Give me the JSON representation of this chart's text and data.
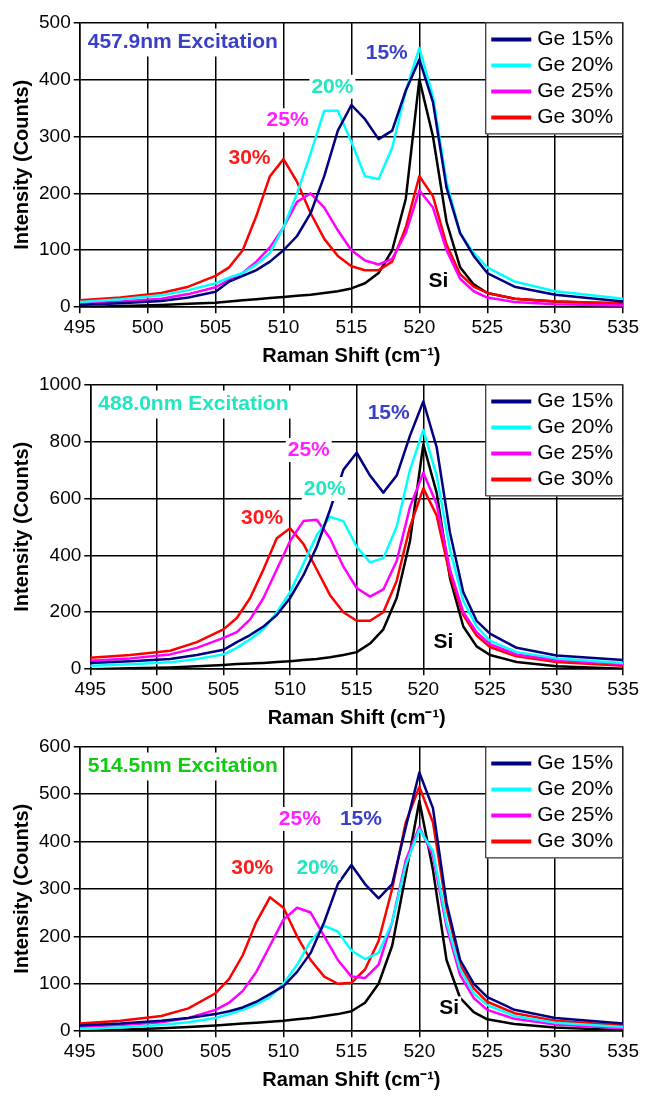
{
  "chart_data": [
    {
      "type": "line",
      "title": "457.9nm Excitation",
      "xlabel": "Raman Shift (cm⁻¹)",
      "ylabel": "Intensity (Counts)",
      "xlim": [
        495,
        535
      ],
      "xticks": [
        495,
        500,
        505,
        510,
        515,
        520,
        525,
        530,
        535
      ],
      "ylim": [
        0,
        500
      ],
      "yticks": [
        0,
        100,
        200,
        300,
        400,
        500
      ],
      "grid": true,
      "legend": "top right",
      "x": [
        495,
        498,
        501,
        503,
        505,
        506,
        507,
        508,
        509,
        510,
        511,
        512,
        513,
        514,
        515,
        516,
        517,
        518,
        519,
        520,
        521,
        522,
        523,
        524,
        525,
        527,
        530,
        535
      ],
      "series": [
        {
          "name": "Ge 15%",
          "color": "#000080",
          "values": [
            4,
            7,
            11,
            17,
            27,
            45,
            55,
            65,
            80,
            100,
            125,
            165,
            230,
            310,
            355,
            330,
            295,
            310,
            380,
            435,
            360,
            210,
            130,
            90,
            60,
            36,
            22,
            10
          ]
        },
        {
          "name": "Ge 20%",
          "color": "#00ffff",
          "values": [
            9,
            14,
            21,
            30,
            42,
            52,
            60,
            75,
            95,
            140,
            200,
            270,
            345,
            345,
            290,
            230,
            225,
            280,
            380,
            455,
            370,
            220,
            130,
            95,
            70,
            45,
            28,
            15
          ]
        },
        {
          "name": "Ge 25%",
          "color": "#ff00ff",
          "values": [
            6,
            10,
            15,
            23,
            35,
            48,
            60,
            80,
            105,
            140,
            185,
            200,
            175,
            135,
            100,
            82,
            75,
            85,
            130,
            205,
            175,
            100,
            50,
            28,
            17,
            9,
            5,
            3
          ]
        },
        {
          "name": "Ge 30%",
          "color": "#ff0000",
          "values": [
            12,
            17,
            25,
            36,
            55,
            70,
            100,
            160,
            230,
            260,
            220,
            165,
            120,
            90,
            72,
            65,
            65,
            80,
            140,
            230,
            195,
            110,
            58,
            36,
            25,
            15,
            10,
            7
          ]
        },
        {
          "color": "#000000",
          "values": [
            0,
            2,
            4,
            6,
            8,
            10,
            12,
            14,
            16,
            18,
            20,
            22,
            25,
            28,
            33,
            42,
            60,
            100,
            190,
            400,
            300,
            150,
            70,
            40,
            25,
            15,
            10,
            6
          ]
        }
      ],
      "annotations": [
        "15%",
        "20%",
        "25%",
        "30%",
        "Si"
      ]
    },
    {
      "type": "line",
      "title": "488.0nm Excitation",
      "xlabel": "Raman Shift (cm⁻¹)",
      "ylabel": "Intensity (Counts)",
      "xlim": [
        495,
        535
      ],
      "xticks": [
        495,
        500,
        505,
        510,
        515,
        520,
        525,
        530,
        535
      ],
      "ylim": [
        0,
        1000
      ],
      "yticks": [
        0,
        200,
        400,
        600,
        800,
        1000
      ],
      "grid": true,
      "legend": "top right",
      "x": [
        495,
        498,
        501,
        503,
        505,
        506,
        507,
        508,
        509,
        510,
        511,
        512,
        513,
        514,
        515,
        516,
        517,
        518,
        519,
        520,
        521,
        522,
        523,
        524,
        525,
        527,
        530,
        535
      ],
      "series": [
        {
          "name": "Ge 15%",
          "color": "#000080",
          "values": [
            22,
            28,
            36,
            50,
            68,
            95,
            120,
            150,
            190,
            250,
            330,
            430,
            560,
            700,
            760,
            680,
            620,
            680,
            820,
            940,
            780,
            480,
            270,
            170,
            125,
            75,
            48,
            32
          ]
        },
        {
          "name": "Ge 20%",
          "color": "#00ffff",
          "values": [
            12,
            17,
            24,
            36,
            52,
            75,
            105,
            140,
            200,
            270,
            370,
            470,
            535,
            520,
            430,
            375,
            390,
            500,
            700,
            840,
            680,
            420,
            240,
            150,
            100,
            60,
            38,
            22
          ]
        },
        {
          "name": "Ge 25%",
          "color": "#ff00ff",
          "values": [
            30,
            38,
            52,
            75,
            110,
            130,
            175,
            250,
            350,
            450,
            520,
            525,
            460,
            360,
            285,
            255,
            280,
            380,
            570,
            690,
            580,
            350,
            200,
            130,
            88,
            52,
            32,
            18
          ]
        },
        {
          "name": "Ge 30%",
          "color": "#ff0000",
          "values": [
            40,
            50,
            65,
            95,
            140,
            180,
            250,
            350,
            460,
            495,
            440,
            350,
            260,
            200,
            170,
            170,
            200,
            310,
            500,
            635,
            540,
            330,
            190,
            118,
            78,
            45,
            25,
            12
          ]
        },
        {
          "color": "#000000",
          "values": [
            0,
            3,
            6,
            10,
            15,
            18,
            20,
            22,
            25,
            28,
            32,
            36,
            42,
            50,
            60,
            90,
            140,
            250,
            450,
            790,
            620,
            320,
            150,
            80,
            50,
            25,
            10,
            2
          ]
        }
      ],
      "annotations": [
        "15%",
        "25%",
        "20%",
        "30%",
        "Si"
      ]
    },
    {
      "type": "line",
      "title": "514.5nm Excitation",
      "xlabel": "Raman Shift (cm⁻¹)",
      "ylabel": "Intensity (Counts)",
      "xlim": [
        495,
        535
      ],
      "xticks": [
        495,
        500,
        505,
        510,
        515,
        520,
        525,
        530,
        535
      ],
      "ylim": [
        0,
        600
      ],
      "yticks": [
        0,
        100,
        200,
        300,
        400,
        500,
        600
      ],
      "grid": true,
      "legend": "top right",
      "x": [
        495,
        498,
        501,
        503,
        505,
        506,
        507,
        508,
        509,
        510,
        511,
        512,
        513,
        514,
        515,
        516,
        517,
        518,
        519,
        520,
        521,
        522,
        523,
        524,
        525,
        527,
        530,
        535
      ],
      "series": [
        {
          "name": "Ge 15%",
          "color": "#000080",
          "values": [
            12,
            16,
            22,
            28,
            36,
            42,
            50,
            62,
            78,
            95,
            125,
            165,
            230,
            310,
            350,
            310,
            280,
            310,
            430,
            545,
            470,
            270,
            150,
            100,
            72,
            45,
            28,
            16
          ]
        },
        {
          "name": "Ge 20%",
          "color": "#00ffff",
          "values": [
            5,
            8,
            13,
            19,
            28,
            36,
            45,
            57,
            72,
            100,
            140,
            190,
            222,
            210,
            170,
            152,
            165,
            230,
            350,
            425,
            380,
            230,
            130,
            80,
            55,
            32,
            18,
            9
          ]
        },
        {
          "name": "Ge 25%",
          "color": "#ff00ff",
          "values": [
            9,
            13,
            19,
            28,
            45,
            60,
            85,
            125,
            180,
            235,
            260,
            250,
            200,
            150,
            115,
            112,
            140,
            230,
            360,
            430,
            370,
            220,
            118,
            70,
            45,
            26,
            14,
            6
          ]
        },
        {
          "name": "Ge 30%",
          "color": "#ff0000",
          "values": [
            16,
            22,
            32,
            48,
            80,
            110,
            160,
            230,
            282,
            260,
            200,
            150,
            115,
            100,
            102,
            130,
            190,
            300,
            440,
            515,
            440,
            260,
            140,
            90,
            62,
            38,
            22,
            12
          ]
        },
        {
          "color": "#000000",
          "values": [
            0,
            3,
            6,
            9,
            12,
            14,
            16,
            18,
            20,
            22,
            25,
            28,
            32,
            36,
            42,
            60,
            100,
            180,
            330,
            485,
            340,
            150,
            70,
            40,
            25,
            15,
            8,
            2
          ]
        }
      ],
      "annotations": [
        "25%",
        "15%",
        "30%",
        "20%",
        "Si"
      ]
    }
  ]
}
